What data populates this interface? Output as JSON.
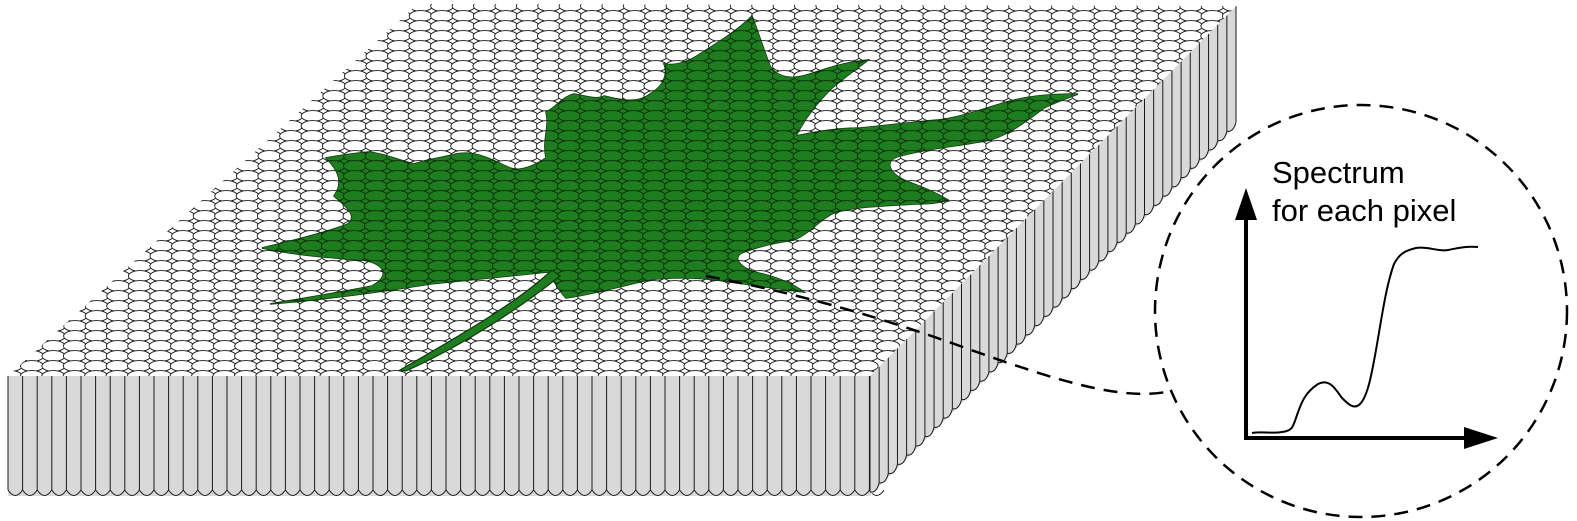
{
  "inset": {
    "title_line1": "Spectrum",
    "title_line2": "for each pixel"
  },
  "colors": {
    "leaf_fill": "#1e7d1e",
    "leaf_stroke": "#0d3a0d",
    "pixel_top": "#ffffff",
    "pixel_side": "#d9d9d9",
    "outline": "#1a1a1a"
  }
}
